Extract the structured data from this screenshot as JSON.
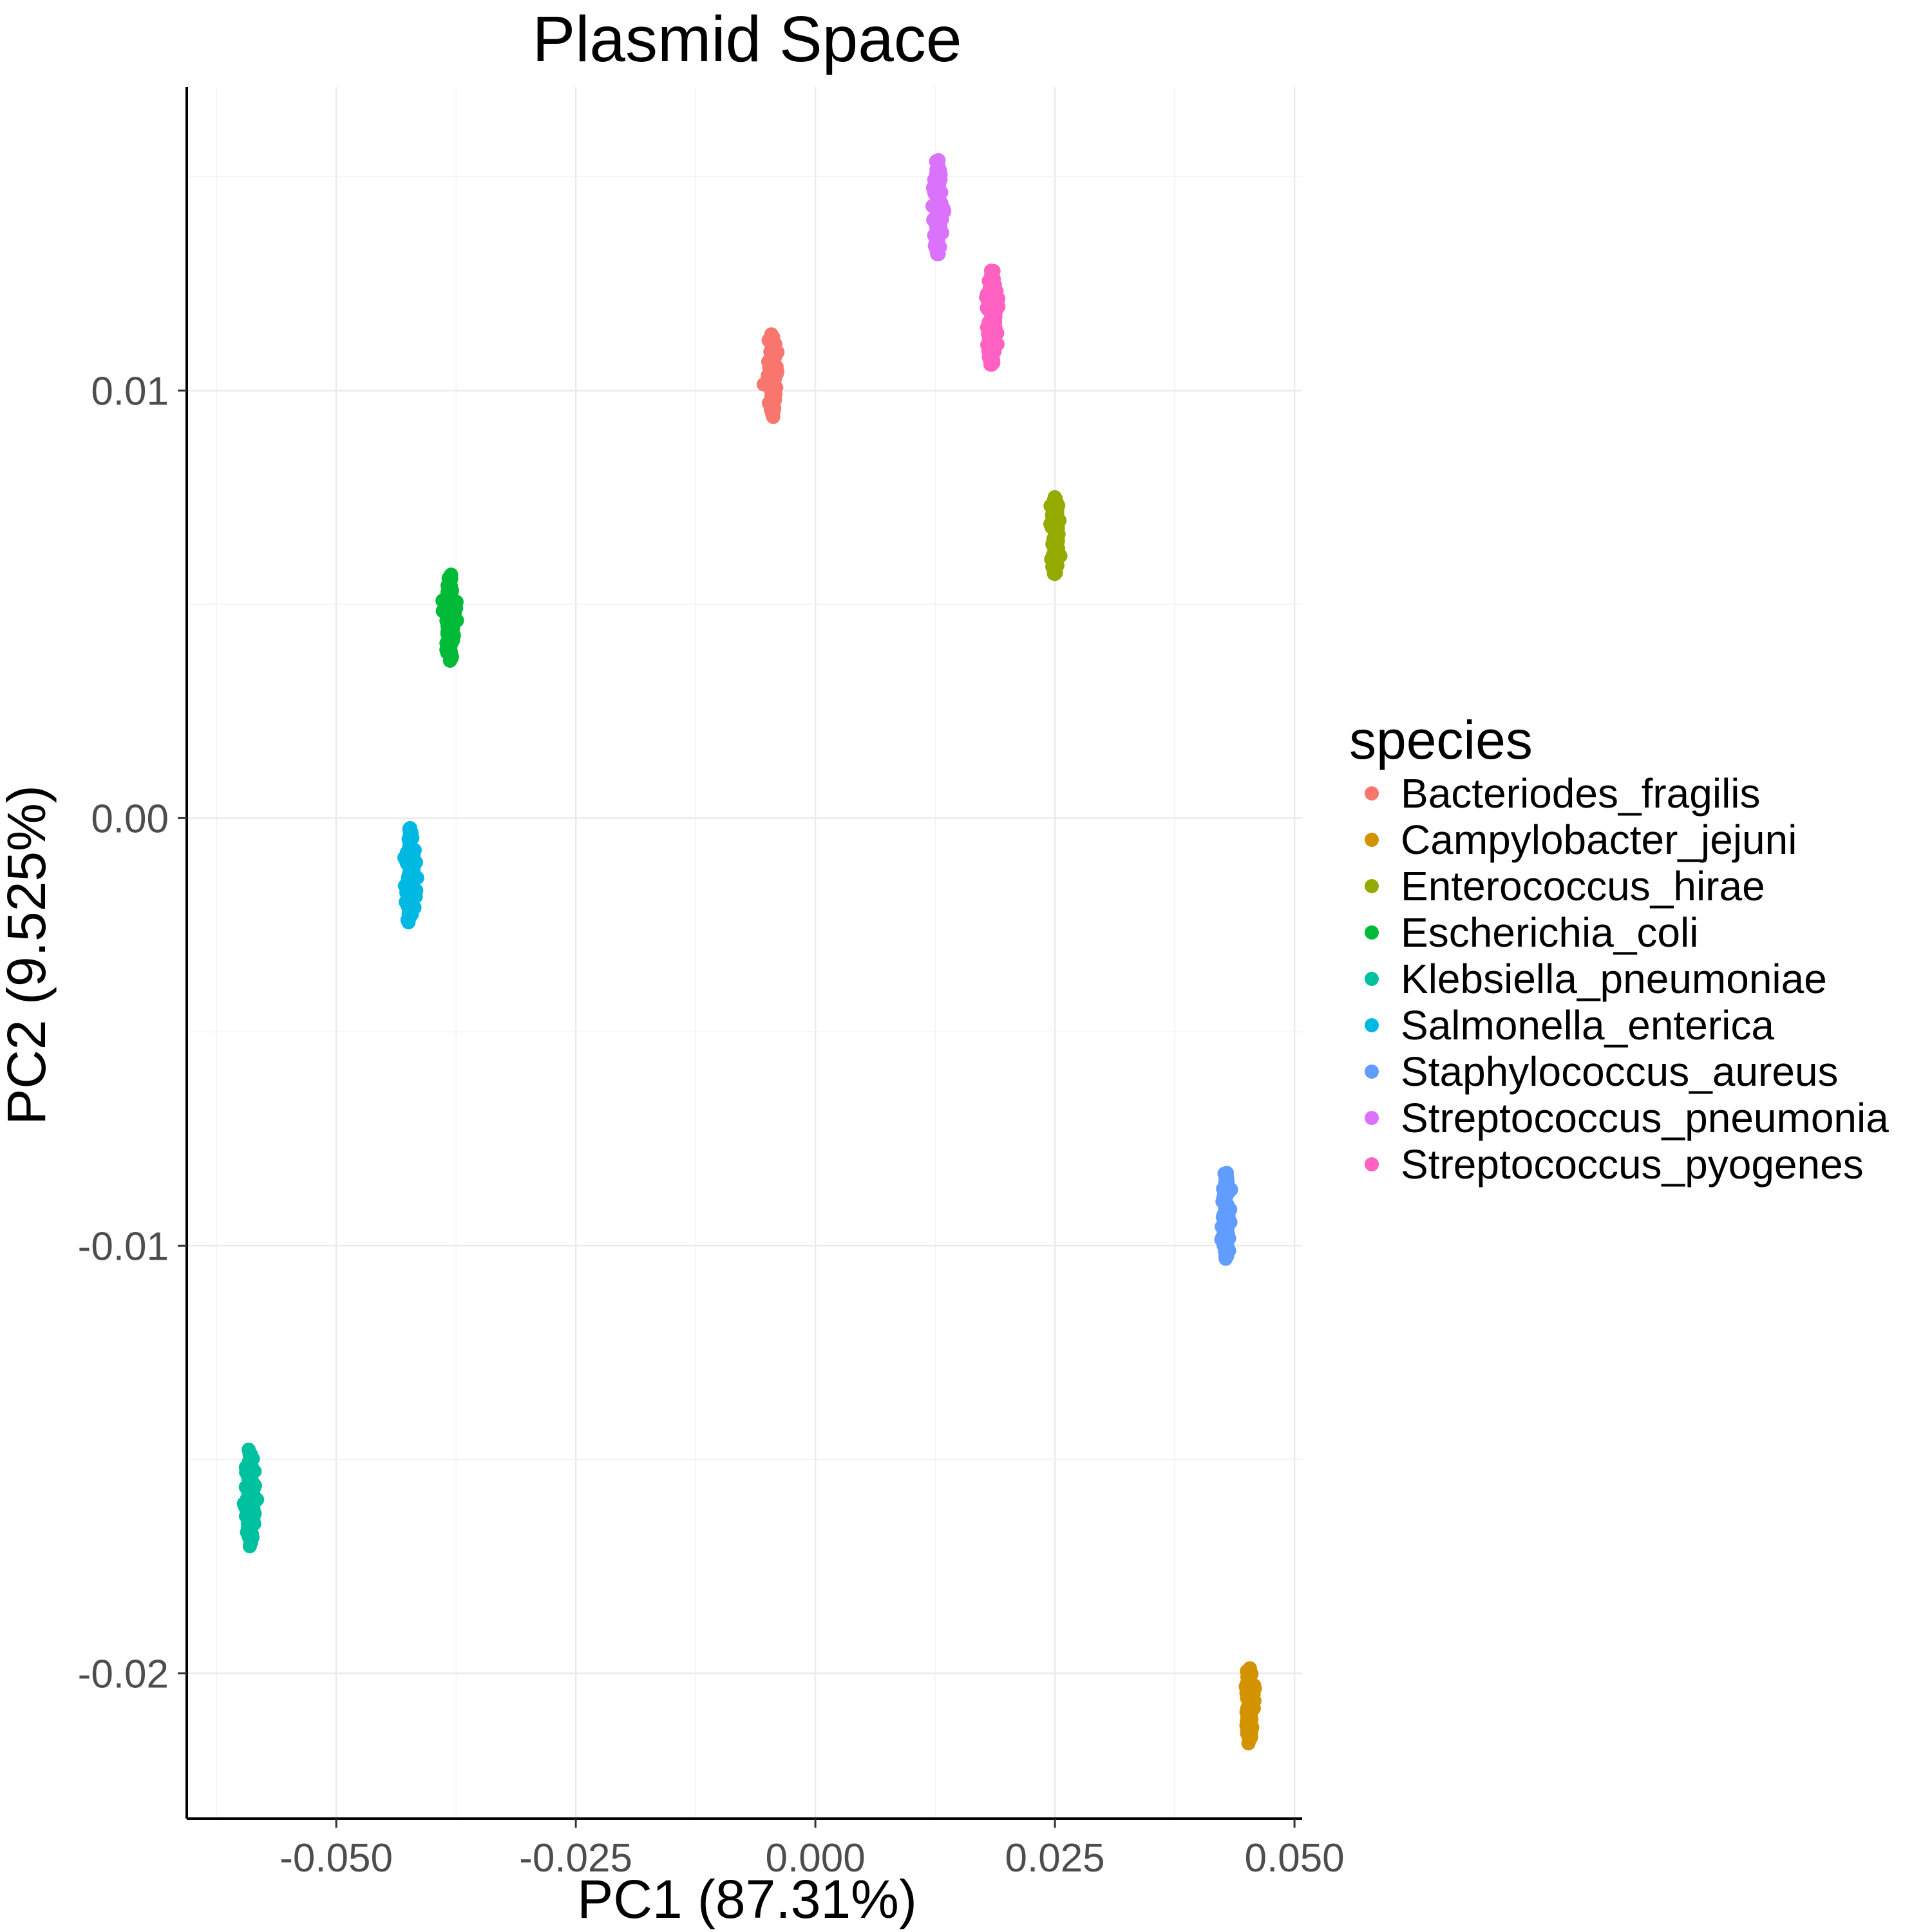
{
  "chart_data": {
    "type": "scatter",
    "title": "Plasmid Space",
    "xlabel": "PC1 (87.31%)",
    "ylabel": "PC2 (9.525%)",
    "xlim": [
      -0.0656,
      0.0508
    ],
    "ylim": [
      -0.0234,
      0.0171
    ],
    "x_ticks": [
      -0.05,
      -0.025,
      0.0,
      0.025,
      0.05
    ],
    "x_tick_labels": [
      "-0.050",
      "-0.025",
      "0.000",
      "0.025",
      "0.050"
    ],
    "y_ticks": [
      -0.02,
      -0.01,
      0.0,
      0.01
    ],
    "y_tick_labels": [
      "-0.02",
      "-0.01",
      "0.00",
      "0.01"
    ],
    "grid": true,
    "legend": {
      "title": "species",
      "position": "right"
    },
    "series": [
      {
        "name": "Bacteriodes_fragilis",
        "color": "#F8766D",
        "x": -0.0045,
        "y": 0.0103,
        "x_spread": 0.0012,
        "y_range": [
          0.0094,
          0.0113
        ]
      },
      {
        "name": "Campylobacter_jejuni",
        "color": "#D39200",
        "x": 0.0453,
        "y": -0.0207,
        "x_spread": 0.001,
        "y_range": [
          -0.0216,
          -0.0199
        ]
      },
      {
        "name": "Enterococcus_hirae",
        "color": "#93AA00",
        "x": 0.025,
        "y": 0.0065,
        "x_spread": 0.001,
        "y_range": [
          0.0057,
          0.0075
        ]
      },
      {
        "name": "Escherichia_coli",
        "color": "#00BA38",
        "x": -0.0381,
        "y": 0.0047,
        "x_spread": 0.0012,
        "y_range": [
          0.0037,
          0.0057
        ]
      },
      {
        "name": "Klebsiella_pneumoniae",
        "color": "#00C19F",
        "x": -0.059,
        "y": -0.0159,
        "x_spread": 0.0012,
        "y_range": [
          -0.017,
          -0.0148
        ]
      },
      {
        "name": "Salmonella_enterica",
        "color": "#00B9E3",
        "x": -0.0423,
        "y": -0.0013,
        "x_spread": 0.0012,
        "y_range": [
          -0.0024,
          -0.0002
        ]
      },
      {
        "name": "Staphylococcus_aureus",
        "color": "#619CFF",
        "x": 0.0428,
        "y": -0.0093,
        "x_spread": 0.001,
        "y_range": [
          -0.0103,
          -0.0083
        ]
      },
      {
        "name": "Streptococcus_pneumonia",
        "color": "#DB72FB",
        "x": 0.0128,
        "y": 0.0143,
        "x_spread": 0.0012,
        "y_range": [
          0.0132,
          0.0154
        ]
      },
      {
        "name": "Streptococcus_pyogenes",
        "color": "#FF61C3",
        "x": 0.0184,
        "y": 0.0117,
        "x_spread": 0.0012,
        "y_range": [
          0.0106,
          0.0128
        ]
      }
    ]
  }
}
